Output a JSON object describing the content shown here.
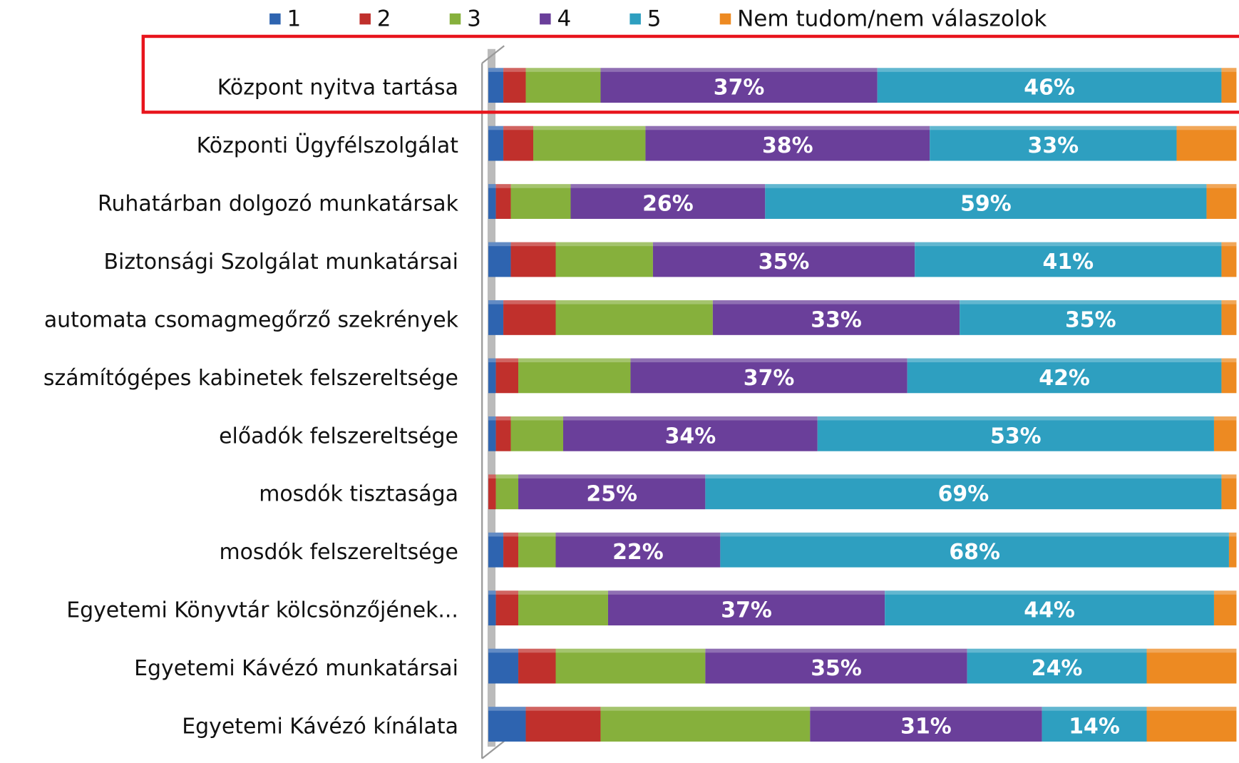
{
  "chart_data": {
    "type": "stacked-bar-horizontal",
    "categories": [
      "Központ nyitva tartása",
      "Központi Ügyfélszolgálat",
      "Ruhatárban dolgozó munkatársak",
      "Biztonsági Szolgálat munkatársai",
      "automata csomagmegőrző szekrények",
      "számítógépes kabinetek felszereltsége",
      "előadók felszereltsége",
      "mosdók tisztasága",
      "mosdók felszereltsége",
      "Egyetemi Könyvtár kölcsönzőjének...",
      "Egyetemi Kávézó munkatársai",
      "Egyetemi Kávézó kínálata"
    ],
    "series": [
      {
        "name": "1",
        "color": "#2e64b0",
        "values": [
          2,
          2,
          1,
          3,
          2,
          1,
          1,
          0,
          2,
          1,
          4,
          5
        ]
      },
      {
        "name": "2",
        "color": "#c0302c",
        "values": [
          3,
          4,
          2,
          6,
          7,
          3,
          2,
          1,
          2,
          3,
          5,
          10
        ]
      },
      {
        "name": "3",
        "color": "#86b03c",
        "values": [
          10,
          15,
          8,
          13,
          21,
          15,
          7,
          3,
          5,
          12,
          20,
          28
        ]
      },
      {
        "name": "4",
        "color": "#6a3f9a",
        "values": [
          37,
          38,
          26,
          35,
          33,
          37,
          34,
          25,
          22,
          37,
          35,
          31
        ],
        "value_labels": [
          "37%",
          "38%",
          "26%",
          "35%",
          "33%",
          "37%",
          "34%",
          "25%",
          "22%",
          "37%",
          "35%",
          "31%"
        ]
      },
      {
        "name": "5",
        "color": "#2e9fc0",
        "values": [
          46,
          33,
          59,
          41,
          35,
          42,
          53,
          69,
          68,
          44,
          24,
          14
        ],
        "value_labels": [
          "46%",
          "33%",
          "59%",
          "41%",
          "35%",
          "42%",
          "53%",
          "69%",
          "68%",
          "44%",
          "24%",
          "14%"
        ]
      },
      {
        "name": "Nem tudom/nem válaszolok",
        "color": "#ed8a22",
        "values": [
          2,
          8,
          4,
          2,
          2,
          2,
          3,
          2,
          1,
          3,
          12,
          12
        ]
      }
    ],
    "xlim": [
      0,
      100
    ]
  }
}
